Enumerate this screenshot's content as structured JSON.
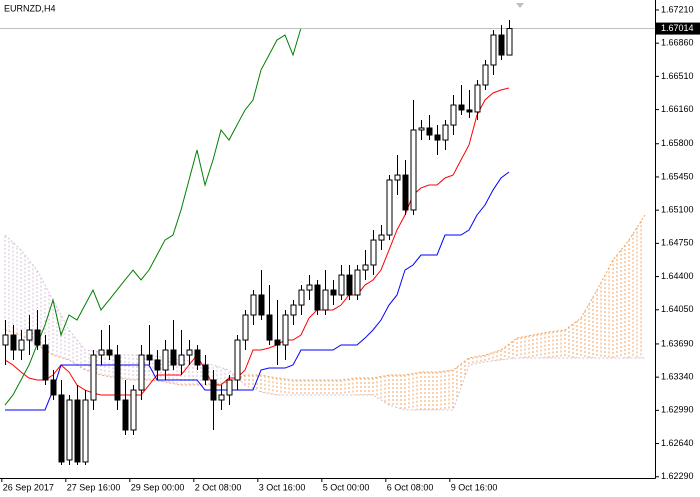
{
  "chart_data": {
    "type": "candlestick",
    "title": "EURNZD,H4",
    "x": [
      0,
      1,
      2,
      3,
      4,
      5,
      6,
      7,
      8,
      9,
      10,
      11,
      12,
      13,
      14,
      15,
      16,
      17,
      18,
      19,
      20,
      21,
      22,
      23,
      24,
      25,
      26,
      27,
      28,
      29,
      30,
      31,
      32,
      33,
      34,
      35,
      36,
      37,
      38,
      39,
      40,
      41,
      42,
      43,
      44,
      45,
      46,
      47,
      48,
      49,
      50,
      51,
      52,
      53,
      54,
      55,
      56,
      57,
      58,
      59,
      60,
      61,
      62,
      63
    ],
    "open": [
      1.63679,
      1.63784,
      1.63626,
      1.63731,
      1.63837,
      1.63679,
      1.6331,
      1.63152,
      1.62467,
      1.63099,
      1.62446,
      1.63099,
      1.63573,
      1.63626,
      1.63573,
      1.63099,
      1.62783,
      1.63204,
      1.63573,
      1.63521,
      1.63415,
      1.63626,
      1.63468,
      1.63573,
      1.63626,
      1.63468,
      1.6331,
      1.63099,
      1.63152,
      1.6331,
      1.63731,
      1.63995,
      1.64206,
      1.63995,
      1.63731,
      1.63679,
      1.63995,
      1.641,
      1.64258,
      1.64311,
      1.64048,
      1.64258,
      1.64206,
      1.64416,
      1.64206,
      1.64469,
      1.64522,
      1.64785,
      1.64838,
      1.65418,
      1.6547,
      1.65102,
      1.65945,
      1.65966,
      1.65892,
      1.65839,
      1.65997,
      1.66208,
      1.66156,
      1.66135,
      1.66419,
      1.6663,
      1.66946,
      1.66735
    ],
    "high": [
      1.63942,
      1.63889,
      1.63837,
      1.63995,
      1.64048,
      1.63784,
      1.63415,
      1.6331,
      1.63152,
      1.63257,
      1.63204,
      1.63626,
      1.63837,
      1.63889,
      1.63679,
      1.6331,
      1.63257,
      1.63679,
      1.63889,
      1.63626,
      1.63731,
      1.63942,
      1.63837,
      1.63731,
      1.63679,
      1.63573,
      1.63415,
      1.63257,
      1.63362,
      1.63784,
      1.64048,
      1.64258,
      1.64469,
      1.64311,
      1.64153,
      1.64048,
      1.64153,
      1.64311,
      1.64416,
      1.64364,
      1.64469,
      1.64364,
      1.64522,
      1.64522,
      1.64522,
      1.6468,
      1.64891,
      1.64943,
      1.6547,
      1.65681,
      1.65629,
      1.66261,
      1.6605,
      1.66103,
      1.65997,
      1.6605,
      1.66314,
      1.66419,
      1.66366,
      1.66472,
      1.66683,
      1.66999,
      1.67051,
      1.67104
    ],
    "low": [
      1.63468,
      1.63521,
      1.63521,
      1.63573,
      1.63626,
      1.63257,
      1.63099,
      1.62414,
      1.62414,
      1.62414,
      1.62414,
      1.62994,
      1.63468,
      1.63521,
      1.62994,
      1.6273,
      1.6273,
      1.63099,
      1.63468,
      1.6331,
      1.6331,
      1.63415,
      1.63362,
      1.63468,
      1.63415,
      1.63257,
      1.62783,
      1.62994,
      1.63046,
      1.63204,
      1.63626,
      1.63889,
      1.63942,
      1.63679,
      1.63468,
      1.63521,
      1.63889,
      1.63995,
      1.64153,
      1.63995,
      1.63995,
      1.641,
      1.64153,
      1.64153,
      1.64153,
      1.64364,
      1.64416,
      1.6468,
      1.64785,
      1.6526,
      1.65049,
      1.65049,
      1.65839,
      1.65839,
      1.65681,
      1.65734,
      1.65892,
      1.66103,
      1.66071,
      1.6605,
      1.66366,
      1.66525,
      1.66683,
      1.66735
    ],
    "close": [
      1.63784,
      1.63626,
      1.63731,
      1.63837,
      1.63679,
      1.6331,
      1.63152,
      1.62446,
      1.63099,
      1.62446,
      1.63099,
      1.63573,
      1.63626,
      1.63573,
      1.63099,
      1.62783,
      1.63204,
      1.63573,
      1.63521,
      1.63415,
      1.63626,
      1.63468,
      1.63573,
      1.63626,
      1.63468,
      1.6331,
      1.63099,
      1.63152,
      1.6331,
      1.63731,
      1.63995,
      1.64206,
      1.63995,
      1.63731,
      1.63679,
      1.63995,
      1.641,
      1.64258,
      1.64311,
      1.64048,
      1.64258,
      1.64206,
      1.64416,
      1.64206,
      1.64469,
      1.64522,
      1.64785,
      1.64838,
      1.65418,
      1.6547,
      1.65102,
      1.65945,
      1.65966,
      1.65892,
      1.65839,
      1.65997,
      1.66208,
      1.66156,
      1.66135,
      1.66419,
      1.6663,
      1.66946,
      1.66735,
      1.67014
    ],
    "bull_color": "#ffffff",
    "bear_color": "#000000",
    "lines": [
      {
        "color": "#ff0000",
        "values": [
          1.63521,
          1.63468,
          1.63394,
          1.63331,
          1.6331,
          1.6331,
          1.63362,
          1.63468,
          1.63394,
          1.63257,
          1.63204,
          1.63173,
          1.63152,
          1.63152,
          1.63152,
          1.63152,
          1.63152,
          1.63152,
          1.63257,
          1.63362,
          1.63362,
          1.63362,
          1.63362,
          1.63468,
          1.63573,
          1.63415,
          1.63257,
          1.63257,
          1.63331,
          1.63331,
          1.63415,
          1.63626,
          1.63626,
          1.63647,
          1.63679,
          1.63731,
          1.63731,
          1.63784,
          1.63963,
          1.64048,
          1.64048,
          1.64048,
          1.641,
          1.64206,
          1.64206,
          1.64311,
          1.64364,
          1.64469,
          1.6468,
          1.64891,
          1.65049,
          1.6526,
          1.65334,
          1.65365,
          1.65365,
          1.65439,
          1.6547,
          1.65629,
          1.65787,
          1.66103,
          1.66261,
          1.66335,
          1.66366,
          1.66388
        ]
      },
      {
        "color": "#0000ff",
        "values": [
          1.62994,
          1.62994,
          1.62994,
          1.62994,
          1.62994,
          1.62994,
          1.63204,
          1.63468,
          1.63468,
          1.63468,
          1.63468,
          1.63468,
          1.63468,
          1.63468,
          1.63468,
          1.63468,
          1.63468,
          1.63468,
          1.63468,
          1.6331,
          1.6331,
          1.6331,
          1.6331,
          1.6331,
          1.6331,
          1.63204,
          1.63204,
          1.63204,
          1.63204,
          1.63204,
          1.63204,
          1.63204,
          1.63415,
          1.63436,
          1.63436,
          1.63436,
          1.63468,
          1.63626,
          1.63626,
          1.63626,
          1.63626,
          1.63626,
          1.63679,
          1.63679,
          1.63679,
          1.63752,
          1.63837,
          1.63942,
          1.641,
          1.64206,
          1.64469,
          1.64522,
          1.64627,
          1.64627,
          1.64627,
          1.64838,
          1.64838,
          1.64838,
          1.64891,
          1.65049,
          1.65154,
          1.65312,
          1.65439,
          1.65502
        ]
      },
      {
        "color": "#008000",
        "values": [
          1.63046,
          1.63152,
          1.6331,
          1.63468,
          1.63679,
          1.63889,
          1.64153,
          1.63784,
          1.63995,
          1.63942,
          1.641,
          1.64258,
          1.64048,
          1.64153,
          1.64258,
          1.64364,
          1.64469,
          1.64364,
          1.64469,
          1.64627,
          1.64785,
          1.64838,
          1.65102,
          1.65418,
          1.65734,
          1.65365,
          1.65629,
          1.65945,
          1.65839,
          1.65997,
          1.66156,
          1.66261,
          1.66577,
          1.66735,
          1.66893,
          1.66946,
          1.66735,
          1.6702,
          null,
          null,
          null,
          null,
          null,
          null,
          null,
          null,
          null,
          null,
          null,
          null,
          null,
          null,
          null,
          null,
          null,
          null,
          null,
          null,
          null,
          null,
          null,
          null,
          null,
          null
        ]
      }
    ],
    "cloud": {
      "x": [
        0,
        2,
        4,
        6,
        8,
        10,
        12,
        14,
        16,
        18,
        20,
        22,
        24,
        26,
        28,
        30,
        32,
        34,
        36,
        38,
        40,
        42,
        44,
        46,
        48,
        50,
        52,
        54,
        56,
        58,
        60,
        62,
        64,
        66,
        68,
        70,
        72,
        74,
        76,
        78,
        80
      ],
      "span_a": [
        1.63837,
        1.63784,
        1.63679,
        1.63573,
        1.63521,
        1.63415,
        1.63362,
        1.63331,
        1.6331,
        1.6331,
        1.63289,
        1.63257,
        1.63257,
        1.63257,
        1.63289,
        1.63362,
        1.63362,
        1.63331,
        1.6331,
        1.6331,
        1.6331,
        1.6331,
        1.63331,
        1.63331,
        1.63362,
        1.63362,
        1.63394,
        1.63394,
        1.63415,
        1.63542,
        1.63573,
        1.63626,
        1.63752,
        1.63784,
        1.63816,
        1.63837,
        1.63963,
        1.64258,
        1.64575,
        1.64785,
        1.65049
      ],
      "span_b": [
        1.64838,
        1.6468,
        1.64469,
        1.64153,
        1.63837,
        1.63626,
        1.63605,
        1.63573,
        1.63573,
        1.63573,
        1.63542,
        1.63521,
        1.635,
        1.63468,
        1.63415,
        1.63257,
        1.63183,
        1.63152,
        1.63152,
        1.63152,
        1.63152,
        1.63152,
        1.63152,
        1.63152,
        1.63046,
        1.62994,
        1.62994,
        1.62994,
        1.62994,
        1.63468,
        1.635,
        1.63521,
        1.63542,
        1.63542,
        1.63542,
        1.63542,
        1.63542,
        1.63542,
        1.63542,
        1.63542,
        1.63542
      ],
      "up_color": "#f4a460",
      "down_color": "#d8bfd8"
    },
    "xlim": [
      -0.625,
      81.25
    ],
    "xticks": [
      {
        "value": -0.4,
        "label": "26 Sep 2017"
      },
      {
        "value": 7.6,
        "label": "27 Sep 16:00"
      },
      {
        "value": 15.6,
        "label": "29 Sep 00:00"
      },
      {
        "value": 23.6,
        "label": "2 Oct 08:00"
      },
      {
        "value": 31.6,
        "label": "3 Oct 16:00"
      },
      {
        "value": 39.6,
        "label": "5 Oct 00:00"
      },
      {
        "value": 47.6,
        "label": "6 Oct 08:00"
      },
      {
        "value": 55.6,
        "label": "9 Oct 16:00"
      }
    ],
    "ylim": [
      1.62277,
      1.67315
    ],
    "yticks": [
      {
        "value": 1.6721,
        "label": "1.67210"
      },
      {
        "value": 1.6686,
        "label": "1.66860"
      },
      {
        "value": 1.6651,
        "label": "1.66510"
      },
      {
        "value": 1.6616,
        "label": "1.66160"
      },
      {
        "value": 1.658,
        "label": "1.65800"
      },
      {
        "value": 1.6545,
        "label": "1.65450"
      },
      {
        "value": 1.651,
        "label": "1.65100"
      },
      {
        "value": 1.6475,
        "label": "1.64750"
      },
      {
        "value": 1.644,
        "label": "1.64400"
      },
      {
        "value": 1.6405,
        "label": "1.64050"
      },
      {
        "value": 1.6369,
        "label": "1.63690"
      },
      {
        "value": 1.6334,
        "label": "1.63340"
      },
      {
        "value": 1.6299,
        "label": "1.62990"
      },
      {
        "value": 1.6264,
        "label": "1.62640"
      },
      {
        "value": 1.6229,
        "label": "1.62290"
      }
    ]
  }
}
